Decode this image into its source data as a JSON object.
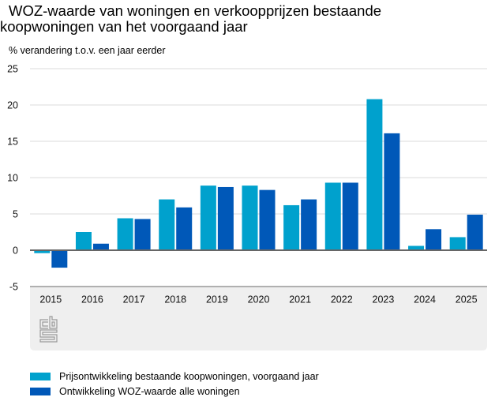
{
  "header": {
    "title_line1": "WOZ-waarde van woningen en verkoopprijzen bestaande",
    "title_line2": "koopwoningen van het voorgaand jaar",
    "subtitle": "% verandering t.o.v. een jaar eerder"
  },
  "logo": {
    "icon": "cbs-logo-icon",
    "text": "cbs"
  },
  "chart_data": {
    "type": "bar",
    "title": "WOZ-waarde van woningen en verkoopprijzen bestaande koopwoningen van het voorgaand jaar",
    "ylabel": "% verandering t.o.v. een jaar eerder",
    "xlabel": "",
    "ylim": [
      -5,
      25
    ],
    "yticks": [
      25,
      20,
      15,
      10,
      5,
      0,
      -5
    ],
    "grid": true,
    "legend_position": "bottom-left",
    "categories": [
      "2015",
      "2016",
      "2017",
      "2018",
      "2019",
      "2020",
      "2021",
      "2022",
      "2023",
      "2024",
      "2025"
    ],
    "series": [
      {
        "name": "Prijsontwikkeling bestaande koopwoningen, voorgaand jaar",
        "color": "#00A1CD",
        "values": [
          -0.4,
          2.5,
          4.4,
          7.0,
          8.9,
          8.9,
          6.2,
          9.3,
          20.8,
          0.6,
          1.8
        ]
      },
      {
        "name": "Ontwikkeling WOZ-waarde alle woningen",
        "color": "#0058B8",
        "values": [
          -2.4,
          0.9,
          4.3,
          5.9,
          8.7,
          8.3,
          7.0,
          9.3,
          16.1,
          2.9,
          4.9
        ]
      }
    ]
  },
  "colors": {
    "gridline": "#e2e2e2",
    "zero_line": "#666666",
    "panel_bg": "#efefef"
  }
}
